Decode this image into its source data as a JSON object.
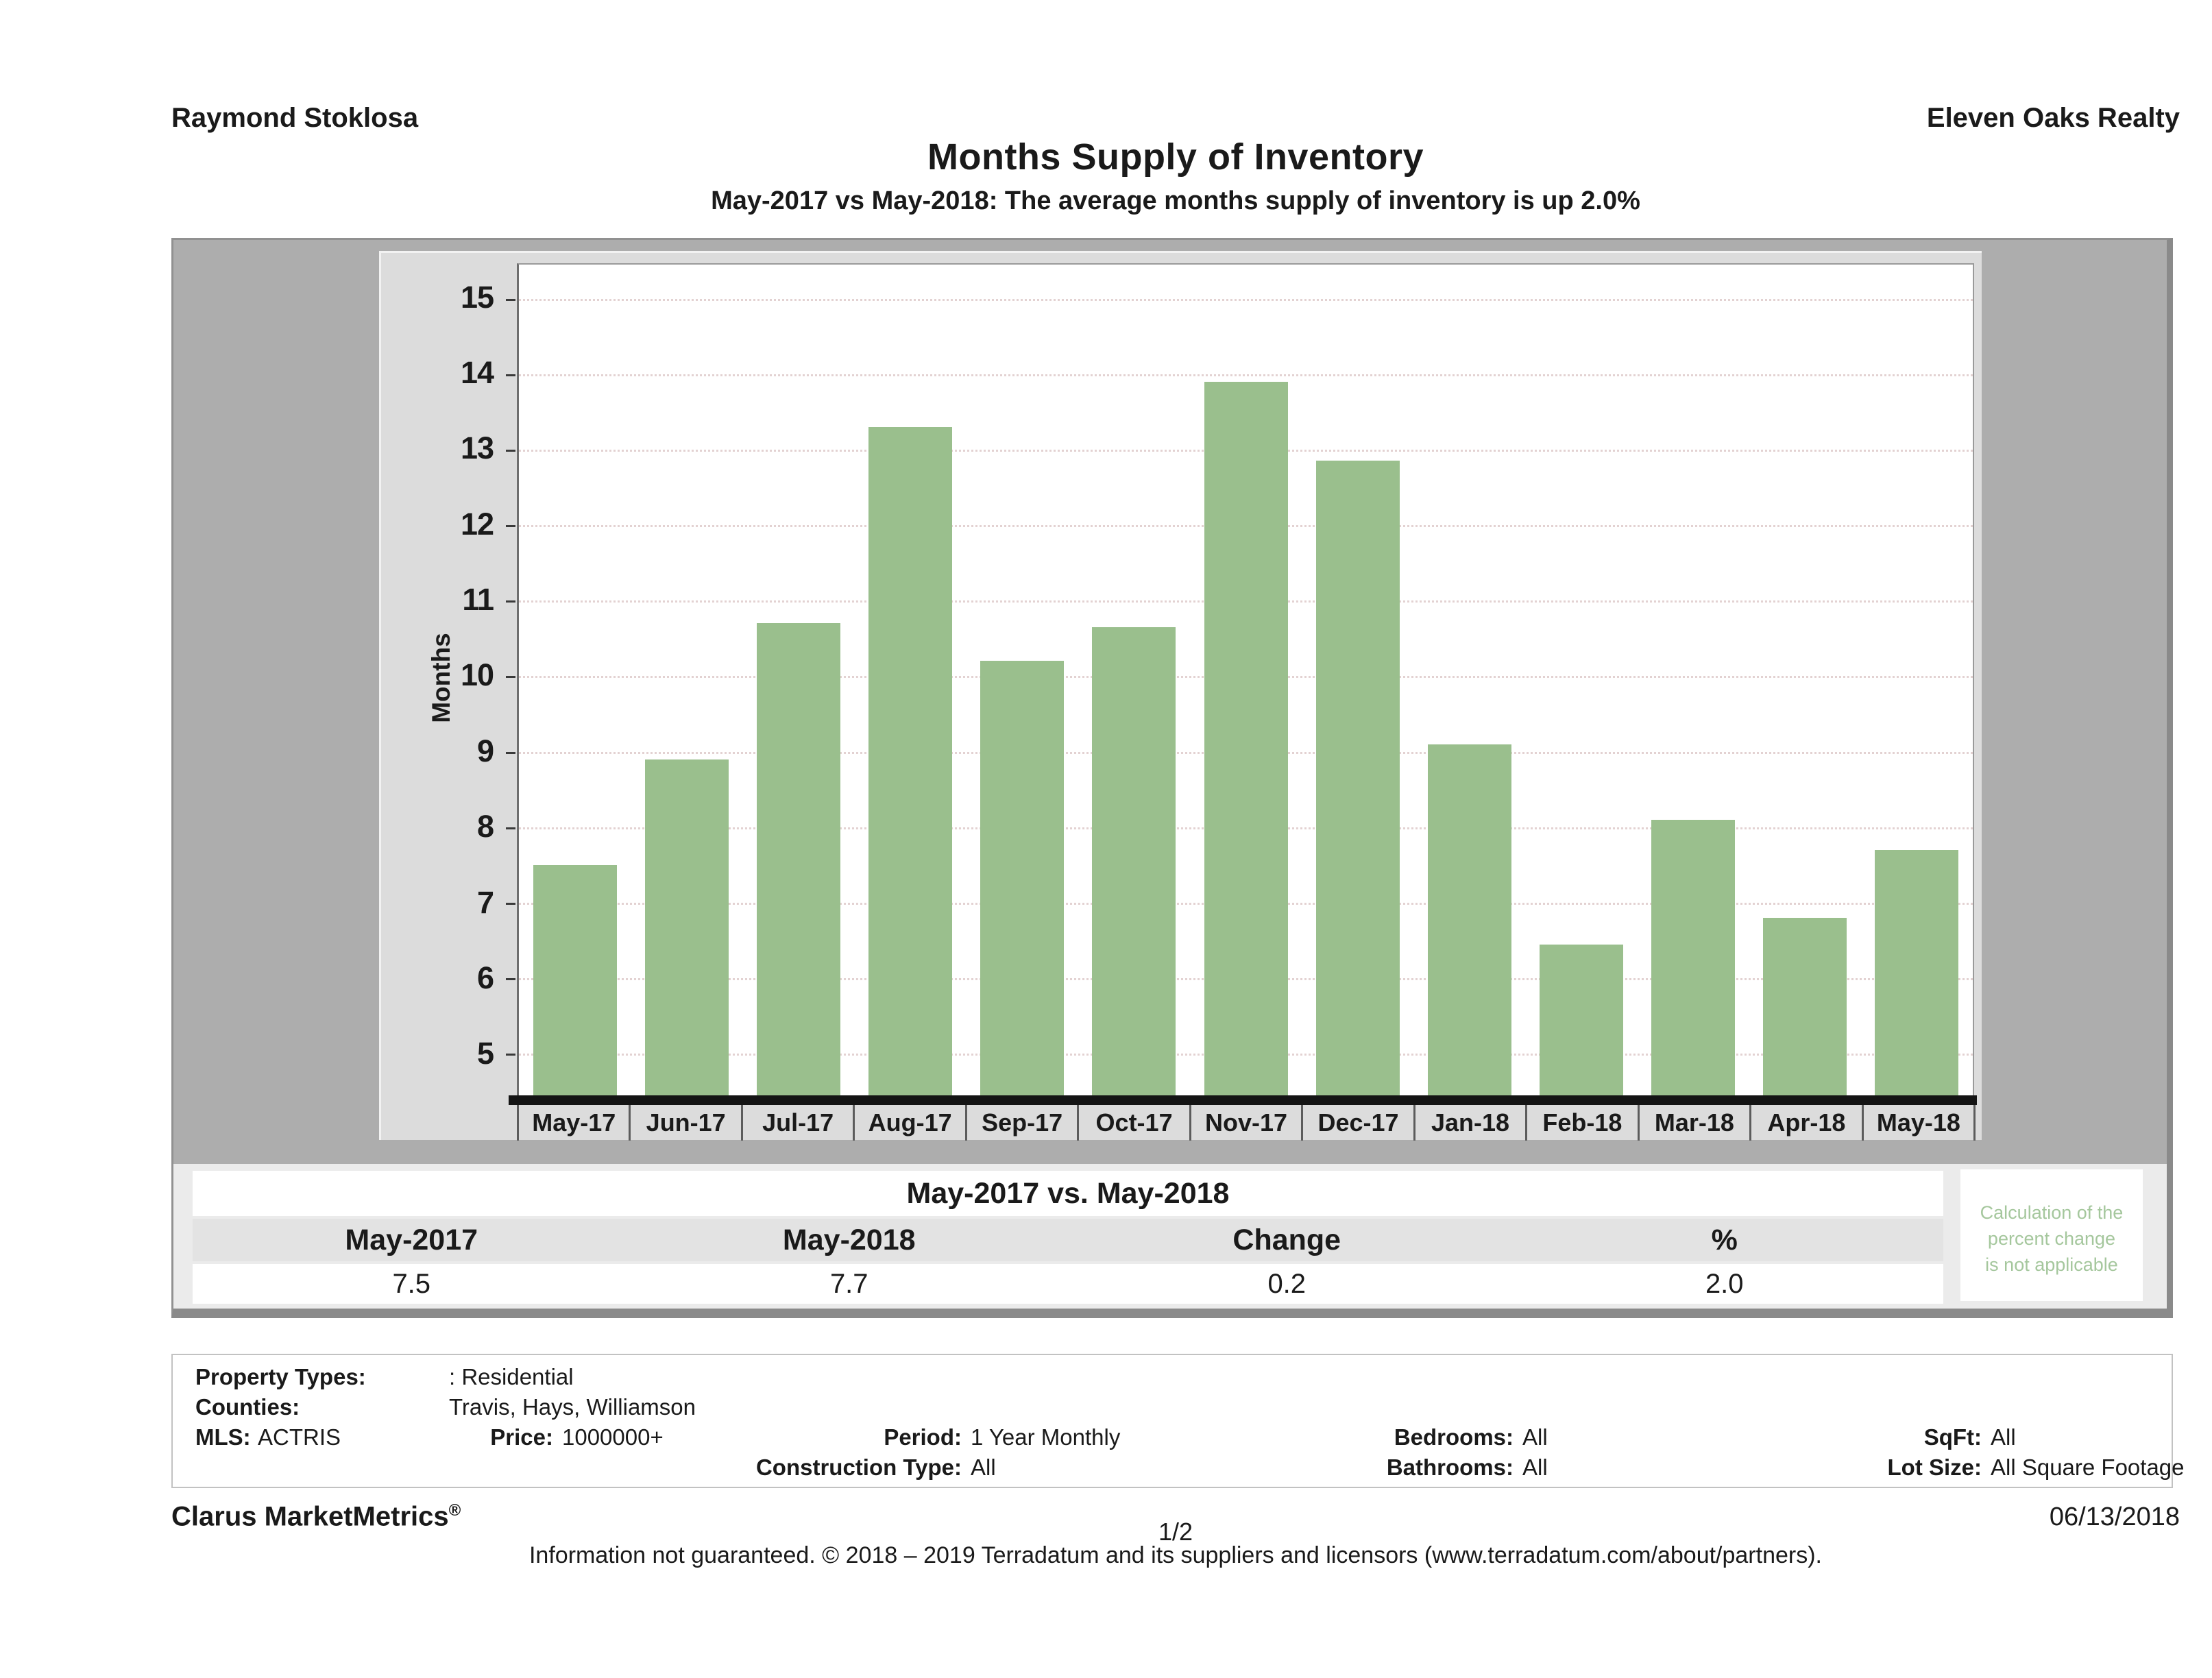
{
  "header": {
    "agent_name": "Raymond Stoklosa",
    "company_name": "Eleven Oaks Realty"
  },
  "chart": {
    "title": "Months Supply of Inventory",
    "subtitle": "May-2017 vs May-2018: The average months supply of inventory is up 2.0%"
  },
  "chart_data": {
    "type": "bar",
    "title": "Months Supply of Inventory",
    "xlabel": "",
    "ylabel": "Months",
    "categories": [
      "May-17",
      "Jun-17",
      "Jul-17",
      "Aug-17",
      "Sep-17",
      "Oct-17",
      "Nov-17",
      "Dec-17",
      "Jan-18",
      "Feb-18",
      "Mar-18",
      "Apr-18",
      "May-18"
    ],
    "values": [
      7.5,
      8.9,
      10.7,
      13.3,
      10.2,
      10.65,
      13.9,
      12.85,
      9.1,
      6.45,
      8.1,
      6.8,
      7.7
    ],
    "y_ticks": [
      15,
      14,
      13,
      12,
      11,
      10,
      9,
      8,
      7,
      6,
      5
    ],
    "ylim": [
      4.45,
      15.45
    ],
    "grid": "horizontal-dotted",
    "legend": "none",
    "bar_color": "#9abf8d"
  },
  "comparison_table": {
    "title": "May-2017 vs. May-2018",
    "headers": [
      "May-2017",
      "May-2018",
      "Change",
      "%"
    ],
    "values": [
      "7.5",
      "7.7",
      "0.2",
      "2.0"
    ]
  },
  "calc_note": {
    "lines": [
      "Calculation of the",
      "percent change",
      "is not applicable"
    ]
  },
  "criteria": {
    "property_types_label": "Property Types:",
    "property_types_value": ": Residential",
    "counties_label": "Counties:",
    "counties_value": "Travis, Hays, Williamson",
    "mls_label": "MLS:",
    "mls_value": "ACTRIS",
    "price_label": "Price:",
    "price_value": "1000000+",
    "period_label": "Period:",
    "period_value": "1 Year Monthly",
    "construction_label": "Construction Type:",
    "construction_value": "All",
    "bedrooms_label": "Bedrooms:",
    "bedrooms_value": "All",
    "bathrooms_label": "Bathrooms:",
    "bathrooms_value": "All",
    "sqft_label": "SqFt:",
    "sqft_value": "All",
    "lot_size_label": "Lot Size:",
    "lot_size_value": "All Square Footage"
  },
  "footer": {
    "brand_name": "Clarus MarketMetrics",
    "brand_reg": "®",
    "page_number": "1/2",
    "date": "06/13/2018",
    "disclaimer": "Information not guaranteed. © 2018 – 2019 Terradatum and its suppliers and licensors (www.terradatum.com/about/partners)."
  },
  "colors": {
    "bar_green": "#9abf8d",
    "note_green": "#a5c79d",
    "panel_gray": "#dcdcdc",
    "frame_gray": "#adadad",
    "strip_gray": "#ebebeb",
    "gridline": "#e3d2d2"
  }
}
